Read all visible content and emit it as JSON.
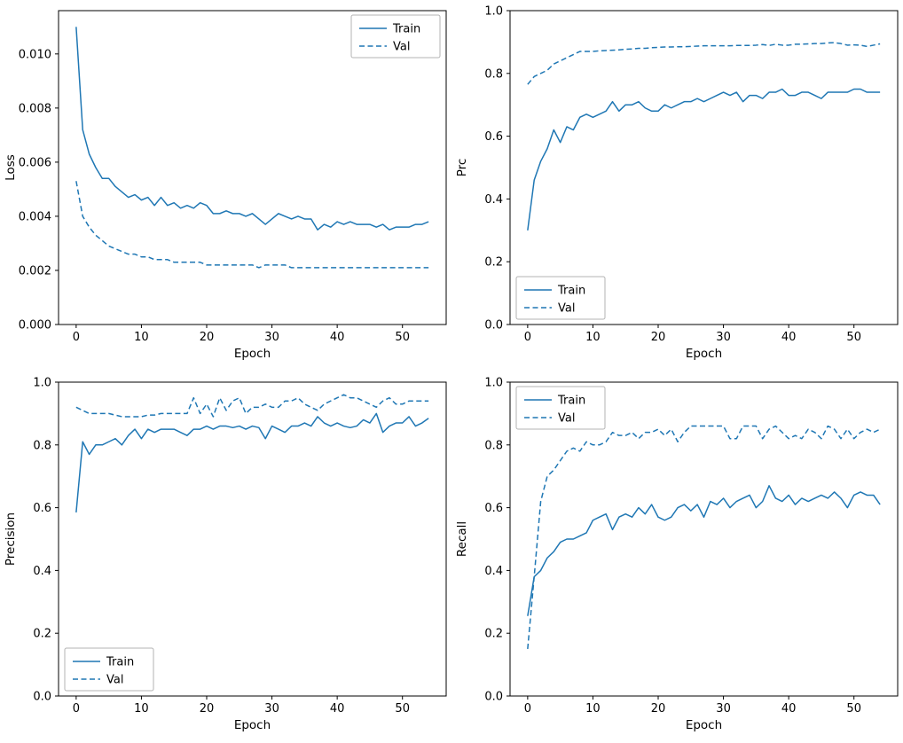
{
  "figure": {
    "background": "#ffffff",
    "line_color": "#1f77b4"
  },
  "epochs": [
    0,
    1,
    2,
    3,
    4,
    5,
    6,
    7,
    8,
    9,
    10,
    11,
    12,
    13,
    14,
    15,
    16,
    17,
    18,
    19,
    20,
    21,
    22,
    23,
    24,
    25,
    26,
    27,
    28,
    29,
    30,
    31,
    32,
    33,
    34,
    35,
    36,
    37,
    38,
    39,
    40,
    41,
    42,
    43,
    44,
    45,
    46,
    47,
    48,
    49,
    50,
    51,
    52,
    53,
    54
  ],
  "chart_data": [
    {
      "type": "line",
      "title": "",
      "xlabel": "Epoch",
      "ylabel": "Loss",
      "xlim": [
        -2.7,
        56.7
      ],
      "ylim": [
        0,
        0.0116
      ],
      "xticks": [
        0,
        10,
        20,
        30,
        40,
        50
      ],
      "xtick_labels": [
        "0",
        "10",
        "20",
        "30",
        "40",
        "50"
      ],
      "yticks": [
        0,
        0.002,
        0.004,
        0.006,
        0.008,
        0.01
      ],
      "ytick_labels": [
        "0.000",
        "0.002",
        "0.004",
        "0.006",
        "0.008",
        "0.010"
      ],
      "grid": false,
      "legend_position": "upper right",
      "series": [
        {
          "name": "Train",
          "style": "solid",
          "color": "#1f77b4",
          "values": [
            0.011,
            0.0072,
            0.0063,
            0.0058,
            0.0054,
            0.0054,
            0.0051,
            0.0049,
            0.0047,
            0.0048,
            0.0046,
            0.0047,
            0.0044,
            0.0047,
            0.0044,
            0.0045,
            0.0043,
            0.0044,
            0.0043,
            0.0045,
            0.0044,
            0.0041,
            0.0041,
            0.0042,
            0.0041,
            0.0041,
            0.004,
            0.0041,
            0.0039,
            0.0037,
            0.0039,
            0.0041,
            0.004,
            0.0039,
            0.004,
            0.0039,
            0.0039,
            0.0035,
            0.0037,
            0.0036,
            0.0038,
            0.0037,
            0.0038,
            0.0037,
            0.0037,
            0.0037,
            0.0036,
            0.0037,
            0.0035,
            0.0036,
            0.0036,
            0.0036,
            0.0037,
            0.0037,
            0.0038
          ]
        },
        {
          "name": "Val",
          "style": "dashed",
          "color": "#1f77b4",
          "values": [
            0.0053,
            0.004,
            0.0036,
            0.0033,
            0.0031,
            0.0029,
            0.0028,
            0.0027,
            0.0026,
            0.0026,
            0.0025,
            0.0025,
            0.0024,
            0.0024,
            0.0024,
            0.0023,
            0.0023,
            0.0023,
            0.0023,
            0.0023,
            0.0022,
            0.0022,
            0.0022,
            0.0022,
            0.0022,
            0.0022,
            0.0022,
            0.0022,
            0.0021,
            0.0022,
            0.0022,
            0.0022,
            0.0022,
            0.0021,
            0.0021,
            0.0021,
            0.0021,
            0.0021,
            0.0021,
            0.0021,
            0.0021,
            0.0021,
            0.0021,
            0.0021,
            0.0021,
            0.0021,
            0.0021,
            0.0021,
            0.0021,
            0.0021,
            0.0021,
            0.0021,
            0.0021,
            0.0021,
            0.0021
          ]
        }
      ]
    },
    {
      "type": "line",
      "title": "",
      "xlabel": "Epoch",
      "ylabel": "Prc",
      "xlim": [
        -2.7,
        56.7
      ],
      "ylim": [
        0.0,
        1.0
      ],
      "xticks": [
        0,
        10,
        20,
        30,
        40,
        50
      ],
      "xtick_labels": [
        "0",
        "10",
        "20",
        "30",
        "40",
        "50"
      ],
      "yticks": [
        0.0,
        0.2,
        0.4,
        0.6,
        0.8,
        1.0
      ],
      "ytick_labels": [
        "0.0",
        "0.2",
        "0.4",
        "0.6",
        "0.8",
        "1.0"
      ],
      "grid": false,
      "legend_position": "lower left",
      "series": [
        {
          "name": "Train",
          "style": "solid",
          "color": "#1f77b4",
          "values": [
            0.3,
            0.46,
            0.52,
            0.56,
            0.62,
            0.58,
            0.63,
            0.62,
            0.66,
            0.67,
            0.66,
            0.67,
            0.68,
            0.71,
            0.68,
            0.7,
            0.7,
            0.71,
            0.69,
            0.68,
            0.68,
            0.7,
            0.69,
            0.7,
            0.71,
            0.71,
            0.72,
            0.71,
            0.72,
            0.73,
            0.74,
            0.73,
            0.74,
            0.71,
            0.73,
            0.73,
            0.72,
            0.74,
            0.74,
            0.75,
            0.73,
            0.73,
            0.74,
            0.74,
            0.73,
            0.72,
            0.74,
            0.74,
            0.74,
            0.74,
            0.75,
            0.75,
            0.74,
            0.74,
            0.74
          ]
        },
        {
          "name": "Val",
          "style": "dashed",
          "color": "#1f77b4",
          "values": [
            0.765,
            0.79,
            0.8,
            0.81,
            0.83,
            0.84,
            0.85,
            0.86,
            0.87,
            0.87,
            0.87,
            0.872,
            0.873,
            0.874,
            0.875,
            0.877,
            0.878,
            0.88,
            0.88,
            0.882,
            0.883,
            0.884,
            0.884,
            0.885,
            0.885,
            0.886,
            0.887,
            0.888,
            0.888,
            0.888,
            0.888,
            0.888,
            0.889,
            0.889,
            0.889,
            0.89,
            0.892,
            0.889,
            0.893,
            0.89,
            0.89,
            0.893,
            0.893,
            0.894,
            0.895,
            0.895,
            0.897,
            0.898,
            0.895,
            0.89,
            0.891,
            0.89,
            0.886,
            0.89,
            0.894
          ]
        }
      ]
    },
    {
      "type": "line",
      "title": "",
      "xlabel": "Epoch",
      "ylabel": "Precision",
      "xlim": [
        -2.7,
        56.7
      ],
      "ylim": [
        0.0,
        1.0
      ],
      "xticks": [
        0,
        10,
        20,
        30,
        40,
        50
      ],
      "xtick_labels": [
        "0",
        "10",
        "20",
        "30",
        "40",
        "50"
      ],
      "yticks": [
        0.0,
        0.2,
        0.4,
        0.6,
        0.8,
        1.0
      ],
      "ytick_labels": [
        "0.0",
        "0.2",
        "0.4",
        "0.6",
        "0.8",
        "1.0"
      ],
      "grid": false,
      "legend_position": "lower left",
      "series": [
        {
          "name": "Train",
          "style": "solid",
          "color": "#1f77b4",
          "values": [
            0.585,
            0.81,
            0.77,
            0.8,
            0.8,
            0.81,
            0.82,
            0.8,
            0.83,
            0.85,
            0.82,
            0.85,
            0.84,
            0.85,
            0.85,
            0.85,
            0.84,
            0.83,
            0.85,
            0.85,
            0.86,
            0.85,
            0.86,
            0.86,
            0.855,
            0.86,
            0.85,
            0.86,
            0.855,
            0.82,
            0.86,
            0.85,
            0.84,
            0.86,
            0.86,
            0.87,
            0.86,
            0.89,
            0.87,
            0.86,
            0.87,
            0.86,
            0.855,
            0.86,
            0.88,
            0.87,
            0.9,
            0.84,
            0.86,
            0.87,
            0.87,
            0.89,
            0.86,
            0.87,
            0.885
          ]
        },
        {
          "name": "Val",
          "style": "dashed",
          "color": "#1f77b4",
          "values": [
            0.92,
            0.91,
            0.9,
            0.9,
            0.9,
            0.9,
            0.895,
            0.89,
            0.89,
            0.89,
            0.89,
            0.895,
            0.895,
            0.9,
            0.9,
            0.9,
            0.9,
            0.9,
            0.95,
            0.9,
            0.93,
            0.89,
            0.95,
            0.91,
            0.94,
            0.95,
            0.9,
            0.92,
            0.92,
            0.93,
            0.92,
            0.92,
            0.94,
            0.94,
            0.95,
            0.93,
            0.92,
            0.91,
            0.93,
            0.94,
            0.95,
            0.96,
            0.95,
            0.95,
            0.94,
            0.93,
            0.92,
            0.94,
            0.95,
            0.93,
            0.93,
            0.94,
            0.94,
            0.94,
            0.94
          ]
        }
      ]
    },
    {
      "type": "line",
      "title": "",
      "xlabel": "Epoch",
      "ylabel": "Recall",
      "xlim": [
        -2.7,
        56.7
      ],
      "ylim": [
        0.0,
        1.0
      ],
      "xticks": [
        0,
        10,
        20,
        30,
        40,
        50
      ],
      "xtick_labels": [
        "0",
        "10",
        "20",
        "30",
        "40",
        "50"
      ],
      "yticks": [
        0.0,
        0.2,
        0.4,
        0.6,
        0.8,
        1.0
      ],
      "ytick_labels": [
        "0.0",
        "0.2",
        "0.4",
        "0.6",
        "0.8",
        "1.0"
      ],
      "grid": false,
      "legend_position": "upper left",
      "series": [
        {
          "name": "Train",
          "style": "solid",
          "color": "#1f77b4",
          "values": [
            0.255,
            0.38,
            0.4,
            0.44,
            0.46,
            0.49,
            0.5,
            0.5,
            0.51,
            0.52,
            0.56,
            0.57,
            0.58,
            0.53,
            0.57,
            0.58,
            0.57,
            0.6,
            0.58,
            0.61,
            0.57,
            0.56,
            0.57,
            0.6,
            0.61,
            0.59,
            0.61,
            0.57,
            0.62,
            0.61,
            0.63,
            0.6,
            0.62,
            0.63,
            0.64,
            0.6,
            0.62,
            0.67,
            0.63,
            0.62,
            0.64,
            0.61,
            0.63,
            0.62,
            0.63,
            0.64,
            0.63,
            0.65,
            0.63,
            0.6,
            0.64,
            0.65,
            0.64,
            0.64,
            0.61
          ]
        },
        {
          "name": "Val",
          "style": "dashed",
          "color": "#1f77b4",
          "values": [
            0.15,
            0.38,
            0.62,
            0.7,
            0.72,
            0.75,
            0.78,
            0.79,
            0.78,
            0.81,
            0.8,
            0.8,
            0.81,
            0.84,
            0.83,
            0.83,
            0.84,
            0.82,
            0.84,
            0.84,
            0.85,
            0.83,
            0.85,
            0.81,
            0.84,
            0.86,
            0.86,
            0.86,
            0.86,
            0.86,
            0.86,
            0.82,
            0.82,
            0.86,
            0.86,
            0.86,
            0.82,
            0.85,
            0.86,
            0.84,
            0.82,
            0.83,
            0.82,
            0.85,
            0.84,
            0.82,
            0.86,
            0.85,
            0.82,
            0.85,
            0.82,
            0.84,
            0.85,
            0.84,
            0.85
          ]
        }
      ]
    }
  ]
}
